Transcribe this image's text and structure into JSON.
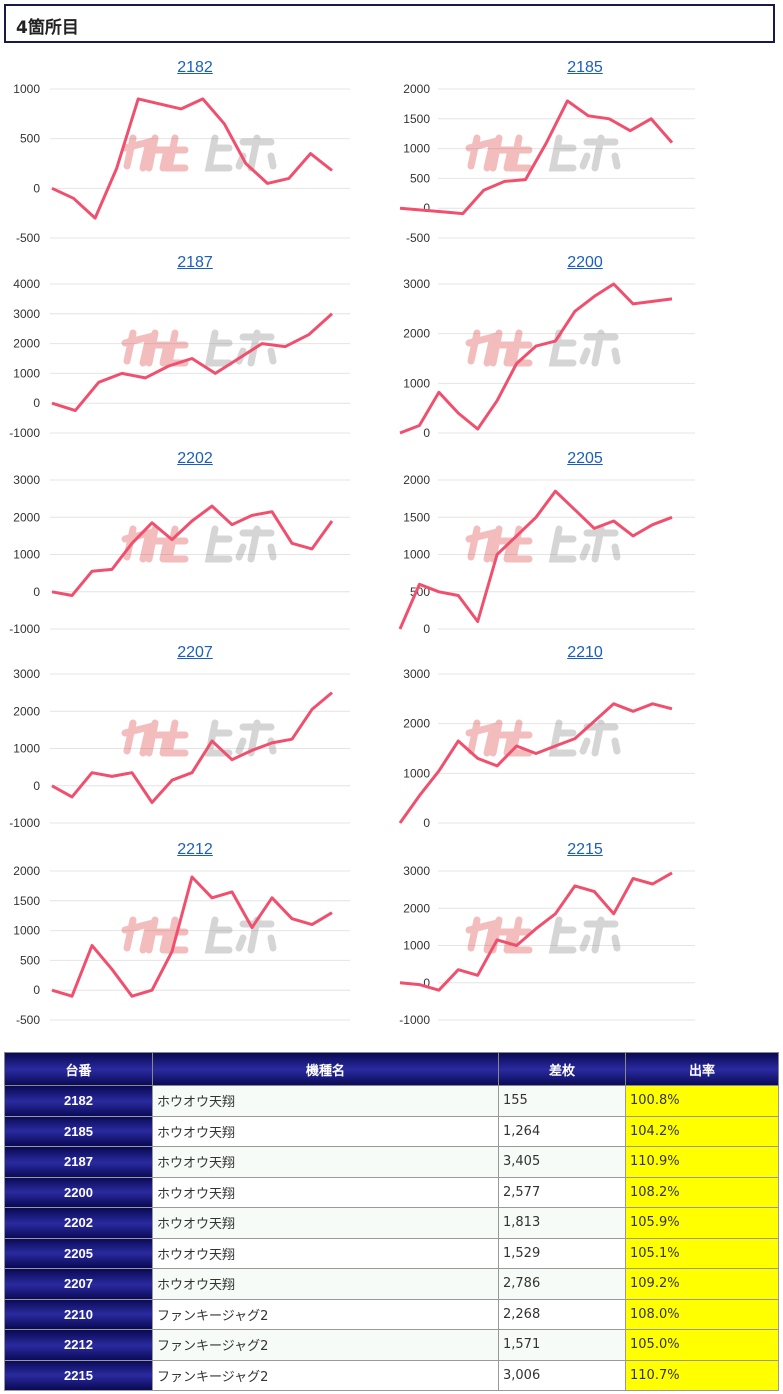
{
  "header": {
    "title": "4箇所目"
  },
  "chart_data": [
    {
      "type": "line",
      "title": "2182",
      "yticks": [
        1000,
        500,
        0,
        -500
      ],
      "ylim": [
        -500,
        1000
      ],
      "color": "#f0506e",
      "values": [
        0,
        -100,
        -300,
        200,
        900,
        850,
        800,
        900,
        650,
        250,
        50,
        100,
        350,
        180
      ]
    },
    {
      "type": "line",
      "title": "2185",
      "yticks": [
        2000,
        1500,
        1000,
        500,
        0,
        -500
      ],
      "ylim": [
        -500,
        2000
      ],
      "color": "#f0506e",
      "values": [
        0,
        -30,
        -60,
        -90,
        300,
        450,
        480,
        1100,
        1800,
        1550,
        1500,
        1300,
        1500,
        1100
      ]
    },
    {
      "type": "line",
      "title": "2187",
      "yticks": [
        4000,
        3000,
        2000,
        1000,
        0,
        -1000
      ],
      "ylim": [
        -1000,
        4000
      ],
      "color": "#f0506e",
      "values": [
        0,
        -250,
        700,
        1000,
        850,
        1250,
        1500,
        1000,
        1500,
        2000,
        1900,
        2300,
        3000
      ]
    },
    {
      "type": "line",
      "title": "2200",
      "yticks": [
        3000,
        2000,
        1000,
        0
      ],
      "ylim": [
        0,
        3000
      ],
      "color": "#f0506e",
      "values": [
        0,
        150,
        820,
        400,
        80,
        650,
        1400,
        1750,
        1850,
        2450,
        2750,
        3000,
        2600,
        2650,
        2700
      ]
    },
    {
      "type": "line",
      "title": "2202",
      "yticks": [
        3000,
        2000,
        1000,
        0,
        -1000
      ],
      "ylim": [
        -1000,
        3000
      ],
      "color": "#f0506e",
      "values": [
        0,
        -100,
        550,
        600,
        1300,
        1850,
        1400,
        1900,
        2300,
        1800,
        2050,
        2150,
        1300,
        1150,
        1900
      ]
    },
    {
      "type": "line",
      "title": "2205",
      "yticks": [
        2000,
        1500,
        1000,
        500,
        0
      ],
      "ylim": [
        0,
        2000
      ],
      "color": "#f0506e",
      "values": [
        0,
        600,
        500,
        450,
        100,
        1000,
        1250,
        1500,
        1850,
        1600,
        1350,
        1450,
        1250,
        1400,
        1500
      ]
    },
    {
      "type": "line",
      "title": "2207",
      "yticks": [
        3000,
        2000,
        1000,
        0,
        -1000
      ],
      "ylim": [
        -1000,
        3000
      ],
      "color": "#f0506e",
      "values": [
        0,
        -300,
        350,
        250,
        350,
        -450,
        150,
        350,
        1200,
        700,
        950,
        1150,
        1250,
        2050,
        2500
      ]
    },
    {
      "type": "line",
      "title": "2210",
      "yticks": [
        3000,
        2000,
        1000,
        0
      ],
      "ylim": [
        0,
        3000
      ],
      "color": "#f0506e",
      "values": [
        0,
        550,
        1050,
        1650,
        1300,
        1150,
        1550,
        1400,
        1550,
        1700,
        2050,
        2400,
        2250,
        2400,
        2300
      ]
    },
    {
      "type": "line",
      "title": "2212",
      "yticks": [
        2000,
        1500,
        1000,
        500,
        0,
        -500
      ],
      "ylim": [
        -500,
        2000
      ],
      "color": "#f0506e",
      "values": [
        0,
        -100,
        750,
        350,
        -100,
        0,
        650,
        1900,
        1550,
        1650,
        1050,
        1550,
        1200,
        1100,
        1300
      ]
    },
    {
      "type": "line",
      "title": "2215",
      "yticks": [
        3000,
        2000,
        1000,
        0,
        -1000
      ],
      "ylim": [
        -1000,
        3000
      ],
      "color": "#f0506e",
      "values": [
        0,
        -50,
        -200,
        350,
        200,
        1150,
        1000,
        1450,
        1850,
        2600,
        2450,
        1850,
        2800,
        2650,
        2950
      ]
    }
  ],
  "table": {
    "headers": [
      "台番",
      "機種名",
      "差枚",
      "出率"
    ],
    "rows": [
      [
        "2182",
        "ホウオウ天翔",
        "155",
        "100.8%"
      ],
      [
        "2185",
        "ホウオウ天翔",
        "1,264",
        "104.2%"
      ],
      [
        "2187",
        "ホウオウ天翔",
        "3,405",
        "110.9%"
      ],
      [
        "2200",
        "ホウオウ天翔",
        "2,577",
        "108.2%"
      ],
      [
        "2202",
        "ホウオウ天翔",
        "1,813",
        "105.9%"
      ],
      [
        "2205",
        "ホウオウ天翔",
        "1,529",
        "105.1%"
      ],
      [
        "2207",
        "ホウオウ天翔",
        "2,786",
        "109.2%"
      ],
      [
        "2210",
        "ファンキージャグ2",
        "2,268",
        "108.0%"
      ],
      [
        "2212",
        "ファンキージャグ2",
        "1,571",
        "105.0%"
      ],
      [
        "2215",
        "ファンキージャグ2",
        "3,006",
        "110.7%"
      ]
    ]
  }
}
